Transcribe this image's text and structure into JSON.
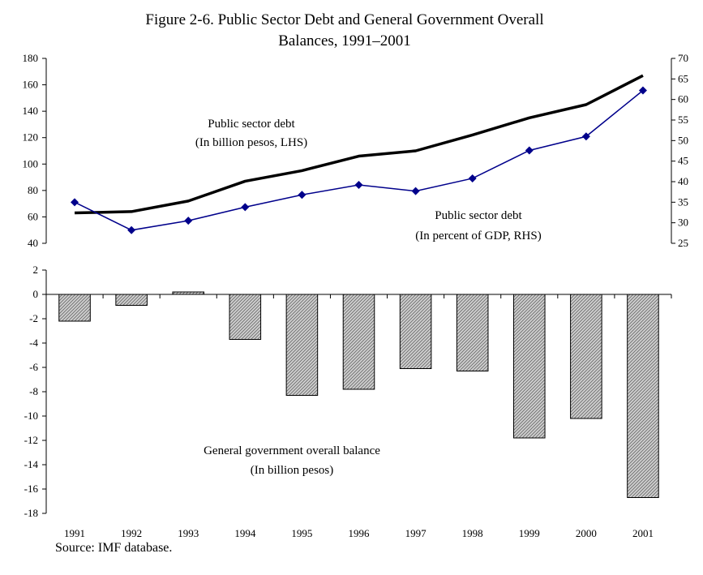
{
  "title": {
    "line1": "Figure 2-6. Public Sector Debt and General Government Overall",
    "line2": "Balances, 1991–2001"
  },
  "source": "Source: IMF database.",
  "colors": {
    "debt_pesos_line": "#000000",
    "debt_gdp_line": "#00008B",
    "balance_bar_fill": "#c8c8c8"
  },
  "chart_data": [
    {
      "type": "line",
      "x": [
        "1991",
        "1992",
        "1993",
        "1994",
        "1995",
        "1996",
        "1997",
        "1998",
        "1999",
        "2000",
        "2001"
      ],
      "left_axis": {
        "ylim": [
          40,
          180
        ],
        "ticks": [
          "40",
          "60",
          "80",
          "100",
          "120",
          "140",
          "160",
          "180"
        ]
      },
      "right_axis": {
        "ylim": [
          25,
          70
        ],
        "ticks": [
          "25",
          "30",
          "35",
          "40",
          "45",
          "50",
          "55",
          "60",
          "65",
          "70"
        ]
      },
      "series": [
        {
          "name": "Public sector debt (In billion pesos, LHS)",
          "axis": "left",
          "values": [
            63,
            64,
            72,
            87,
            95,
            106,
            110,
            122,
            135,
            145,
            167
          ]
        },
        {
          "name": "Public sector debt (In percent of GDP, RHS)",
          "axis": "right",
          "marker": "diamond",
          "values": [
            35,
            28.2,
            30.5,
            33.8,
            36.8,
            39.2,
            37.7,
            40.8,
            47.6,
            51,
            62.2
          ]
        }
      ],
      "annotations": [
        {
          "line1": "Public sector debt",
          "line2": "(In billion pesos, LHS)"
        },
        {
          "line1": "Public sector debt",
          "line2": "(In percent of GDP, RHS)"
        }
      ]
    },
    {
      "type": "bar",
      "categories": [
        "1991",
        "1992",
        "1993",
        "1994",
        "1995",
        "1996",
        "1997",
        "1998",
        "1999",
        "2000",
        "2001"
      ],
      "ylim": [
        -18,
        2
      ],
      "ticks": [
        "2",
        "0",
        "-2",
        "-4",
        "-6",
        "-8",
        "-10",
        "-12",
        "-14",
        "-16",
        "-18"
      ],
      "series": [
        {
          "name": "General government overall balance (In billion pesos)",
          "values": [
            -2.2,
            -0.9,
            0.2,
            -3.7,
            -8.3,
            -7.8,
            -6.1,
            -6.3,
            -11.8,
            -10.2,
            -16.7
          ]
        }
      ],
      "annotation": {
        "line1": "General government overall balance",
        "line2": "(In billion pesos)"
      }
    }
  ]
}
